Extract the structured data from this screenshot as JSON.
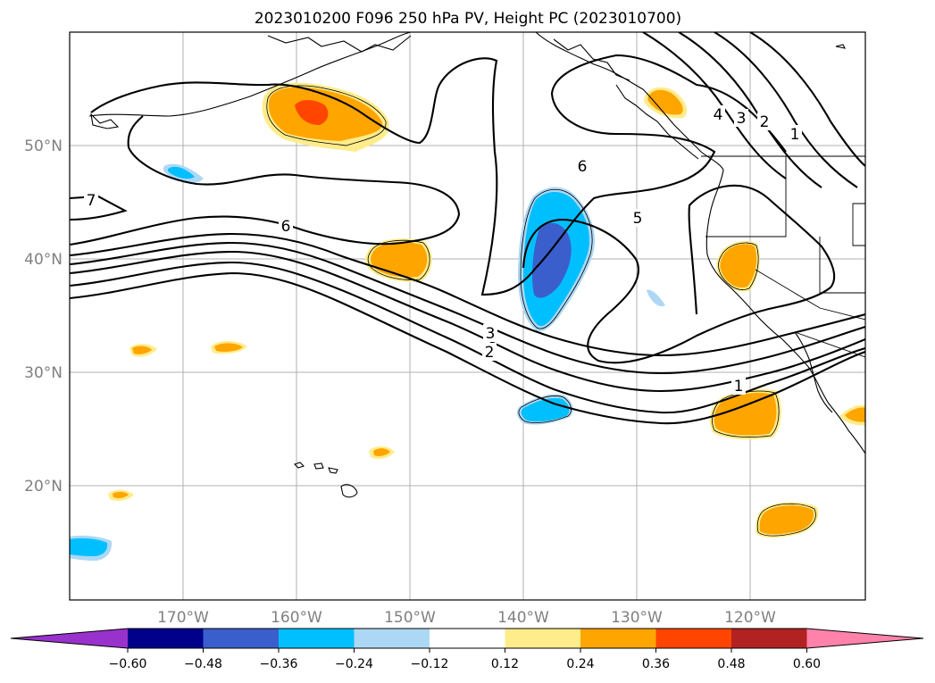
{
  "title": "2023010200 F096 250 hPa PV, Height PC (2023010700)",
  "lat_labels": [
    "50°N",
    "40°N",
    "30°N",
    "20°N"
  ],
  "lon_labels": [
    "170°W",
    "160°W",
    "150°W",
    "140°W",
    "130°W",
    "120°W"
  ],
  "colorbar": {
    "ticks": [
      "−0.60",
      "−0.48",
      "−0.36",
      "−0.24",
      "−0.12",
      "0.12",
      "0.24",
      "0.36",
      "0.48",
      "0.60"
    ],
    "colors": [
      "#9932cc",
      "#00008b",
      "#3a5fcd",
      "#00bfff",
      "#add8f5",
      "#ffffff",
      "#ffec8b",
      "#ffa500",
      "#ff4500",
      "#b22222",
      "#ff82ab"
    ]
  },
  "contour_labels": [
    "7",
    "6",
    "6",
    "5",
    "4",
    "3",
    "2",
    "1",
    "3",
    "2",
    "1"
  ],
  "colors": {
    "pos_low": "#ffec8b",
    "pos_mid": "#ffa500",
    "pos_high": "#ff4500",
    "neg_low": "#add8f5",
    "neg_mid": "#00bfff",
    "neg_high": "#3a5fcd"
  }
}
